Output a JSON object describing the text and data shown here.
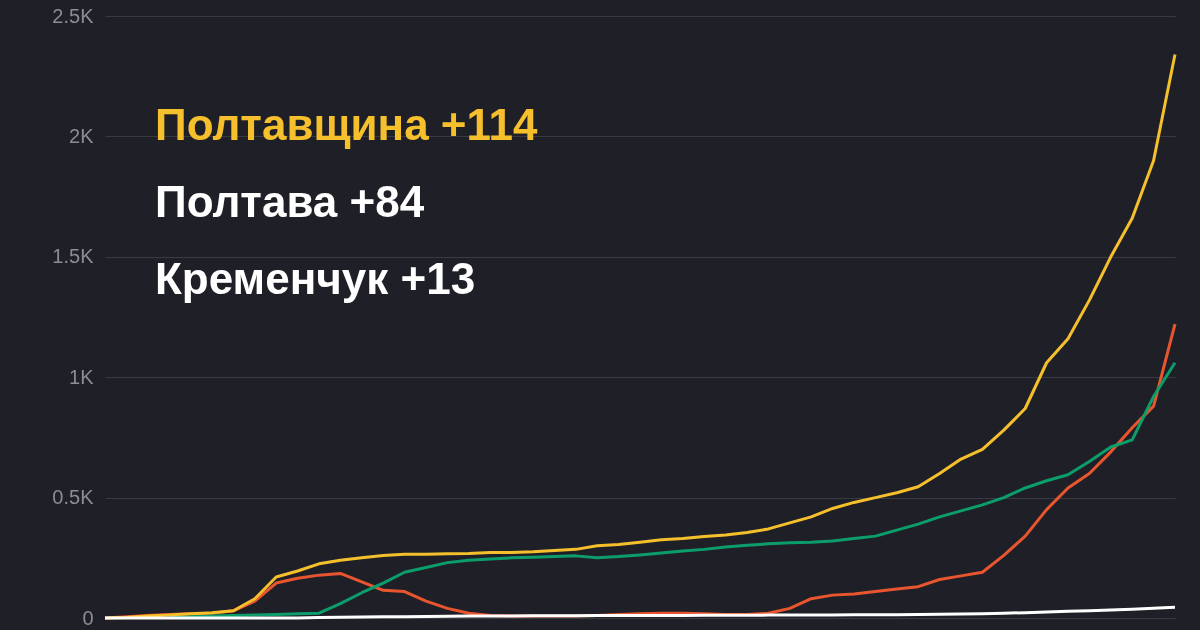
{
  "chart_data": {
    "type": "line",
    "categories": [
      null,
      null,
      null,
      null,
      null,
      null,
      null,
      null,
      null,
      null,
      null,
      null,
      null,
      null,
      null,
      null,
      null,
      null,
      null,
      null,
      null,
      null,
      null,
      null,
      null,
      null,
      null,
      null,
      null,
      null,
      null,
      null,
      null,
      null,
      null,
      null,
      null,
      null,
      null,
      null,
      null,
      null,
      null,
      null,
      null,
      null,
      null,
      null,
      null,
      null,
      null
    ],
    "series": [
      {
        "color": "#f6c02c",
        "values": [
          0,
          2,
          8,
          12,
          18,
          22,
          30,
          80,
          170,
          195,
          225,
          240,
          250,
          260,
          265,
          265,
          267,
          268,
          272,
          272,
          275,
          280,
          285,
          300,
          305,
          315,
          325,
          330,
          338,
          345,
          355,
          370,
          395,
          420,
          455,
          480,
          500,
          520,
          545,
          600,
          660,
          700,
          780,
          870,
          1060,
          1160,
          1320,
          1500,
          1660,
          1900,
          2340
        ]
      },
      {
        "color": "#0c9e6a",
        "values": [
          null,
          null,
          null,
          2,
          5,
          8,
          10,
          12,
          15,
          18,
          20,
          60,
          105,
          145,
          190,
          210,
          230,
          240,
          245,
          250,
          252,
          255,
          258,
          250,
          255,
          262,
          270,
          278,
          285,
          295,
          302,
          308,
          312,
          315,
          320,
          330,
          340,
          365,
          390,
          420,
          445,
          470,
          500,
          540,
          570,
          595,
          650,
          710,
          740,
          920,
          1060
        ]
      },
      {
        "color": "#e8552f",
        "values": [
          0,
          5,
          10,
          15,
          18,
          20,
          30,
          70,
          145,
          165,
          178,
          185,
          150,
          115,
          110,
          70,
          40,
          20,
          10,
          8,
          8,
          8,
          8,
          10,
          15,
          18,
          20,
          20,
          18,
          15,
          15,
          20,
          40,
          80,
          95,
          100,
          110,
          120,
          130,
          160,
          175,
          190,
          260,
          340,
          450,
          540,
          600,
          690,
          790,
          880,
          1220
        ]
      },
      {
        "color": "#ffffff",
        "values": [
          0,
          0,
          0,
          0,
          0,
          0,
          0,
          0,
          0,
          0,
          2,
          3,
          4,
          5,
          5,
          6,
          7,
          8,
          8,
          8,
          9,
          9,
          9,
          10,
          10,
          10,
          10,
          10,
          11,
          11,
          11,
          12,
          12,
          12,
          12,
          13,
          13,
          14,
          15,
          16,
          17,
          18,
          20,
          22,
          25,
          28,
          30,
          33,
          36,
          40,
          45
        ]
      }
    ],
    "ylim": [
      0,
      2500
    ],
    "yticks": [
      {
        "value": 0,
        "label": "0"
      },
      {
        "value": 500,
        "label": "0.5K"
      },
      {
        "value": 1000,
        "label": "1K"
      },
      {
        "value": 1500,
        "label": "1.5K"
      },
      {
        "value": 2000,
        "label": "2K"
      },
      {
        "value": 2500,
        "label": "2.5K"
      }
    ],
    "grid": "y",
    "tick_labels": "y",
    "annotations": [
      "Полтавщина +114",
      "Полтава +84",
      "Кременчук +13"
    ]
  }
}
